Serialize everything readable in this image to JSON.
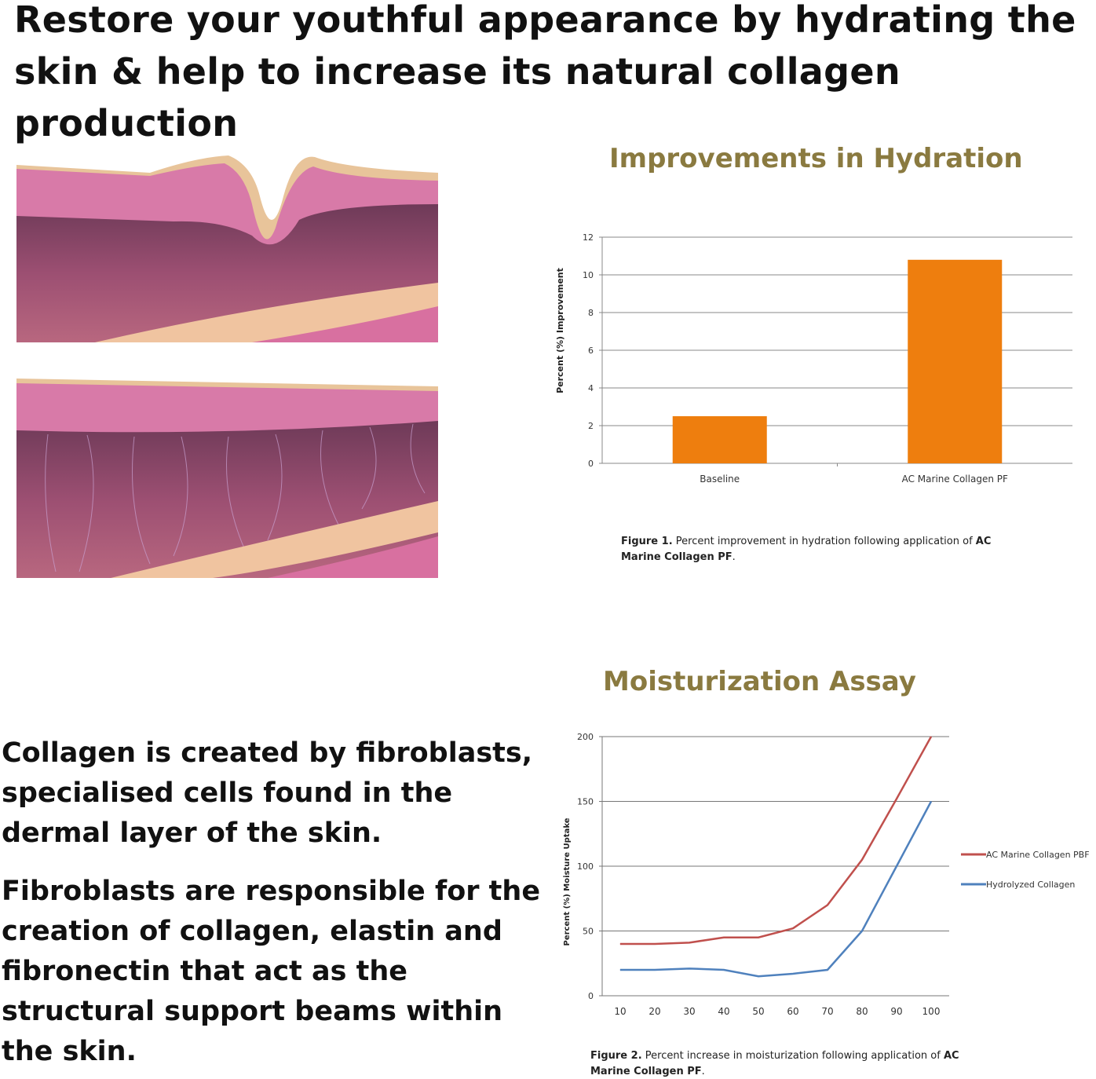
{
  "headline": "Restore your youthful appearance by hydrating the skin & help to increase its natural collagen production",
  "paragraphs": [
    "Collagen is created by fibroblasts, specialised cells found in the dermal layer of the skin.",
    "Fibroblasts are responsible for the creation of collagen, elastin and fibronectin that act as the structural support beams within the skin."
  ],
  "images": [
    "skin-cross-section-wrinkled",
    "skin-cross-section-smooth"
  ],
  "chart_data": [
    {
      "type": "bar",
      "title": "Improvements in Hydration",
      "ylabel": "Percent (%) Improvement",
      "xlabel": "",
      "categories": [
        "Baseline",
        "AC Marine Collagen PF"
      ],
      "values": [
        2.5,
        10.8
      ],
      "ylim": [
        0,
        12
      ],
      "yticks": [
        0,
        2,
        4,
        6,
        8,
        10,
        12
      ],
      "grid": true,
      "color": "#ee7e0e",
      "caption_bold": "Figure 1.",
      "caption": "Percent improvement in hydration following application of",
      "caption_product": "AC Marine Collagen PF",
      "caption_end": "."
    },
    {
      "type": "line",
      "title": "Moisturization Assay",
      "ylabel": "Percent (%) Moisture Uptake",
      "xlabel": "",
      "x": [
        10,
        20,
        30,
        40,
        50,
        60,
        70,
        80,
        90,
        100
      ],
      "series": [
        {
          "name": "AC Marine Collagen PBF",
          "color": "#c0504d",
          "values": [
            40,
            40,
            41,
            45,
            45,
            52,
            70,
            105,
            152,
            200
          ]
        },
        {
          "name": "Hydrolyzed Collagen",
          "color": "#4f81bd",
          "values": [
            20,
            20,
            21,
            20,
            15,
            17,
            20,
            50,
            100,
            150
          ]
        }
      ],
      "ylim": [
        0,
        200
      ],
      "yticks": [
        0,
        50,
        100,
        150,
        200
      ],
      "grid": true,
      "legend": "right",
      "caption_bold": "Figure 2.",
      "caption": "Percent increase in moisturization following application of",
      "caption_product": "AC Marine Collagen PF",
      "caption_end": "."
    }
  ]
}
